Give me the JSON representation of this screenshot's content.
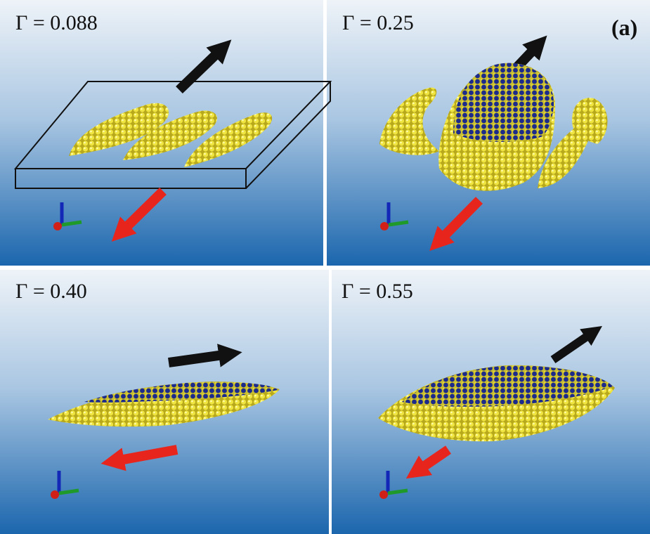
{
  "figure_label": "(a)",
  "panels": [
    {
      "label": "Γ = 0.088"
    },
    {
      "label": "Γ = 0.25"
    },
    {
      "label": "Γ = 0.40"
    },
    {
      "label": "Γ = 0.55"
    }
  ]
}
